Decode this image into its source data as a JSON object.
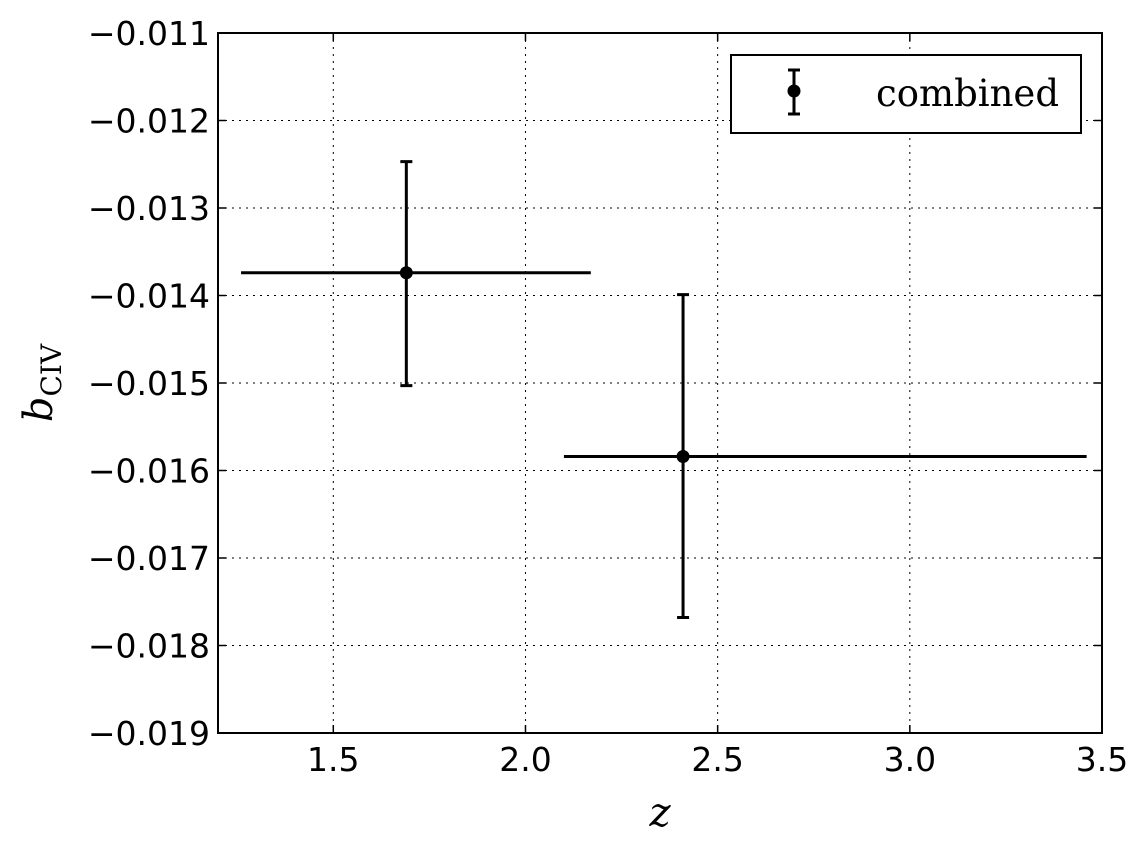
{
  "chart_data": {
    "type": "scatter",
    "title": "",
    "xlabel": "z",
    "ylabel": {
      "main": "b",
      "subscript": "CIV"
    },
    "xlim": [
      1.2,
      3.5
    ],
    "ylim": [
      -0.019,
      -0.011
    ],
    "x_ticks": [
      1.5,
      2.0,
      2.5,
      3.0,
      3.5
    ],
    "x_tick_labels": [
      "1.5",
      "2.0",
      "2.5",
      "3.0",
      "3.5"
    ],
    "y_ticks": [
      -0.011,
      -0.012,
      -0.013,
      -0.014,
      -0.015,
      -0.016,
      -0.017,
      -0.018,
      -0.019
    ],
    "y_tick_labels": [
      "−0.011",
      "−0.012",
      "−0.013",
      "−0.014",
      "−0.015",
      "−0.016",
      "−0.017",
      "−0.018",
      "−0.019"
    ],
    "grid": true,
    "legend_position": "top-right",
    "series": [
      {
        "name": "combined",
        "color": "#000000",
        "points": [
          {
            "x": 1.69,
            "y": -0.01374,
            "x_low": 1.26,
            "x_high": 2.17,
            "y_low": -0.01503,
            "y_high": -0.01247
          },
          {
            "x": 2.41,
            "y": -0.01584,
            "x_low": 2.1,
            "x_high": 3.46,
            "y_low": -0.01768,
            "y_high": -0.01399
          }
        ]
      }
    ]
  }
}
